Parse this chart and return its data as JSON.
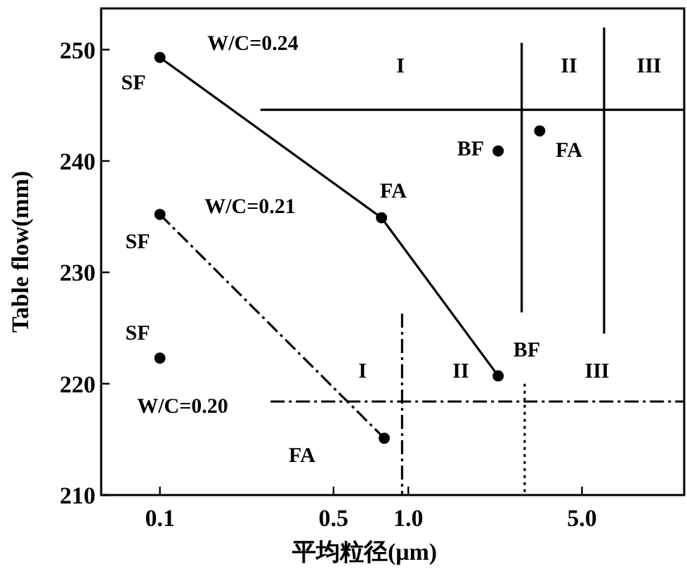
{
  "chart_data": {
    "type": "line",
    "xlabel": "平均粒径(μm)",
    "ylabel": "Table flow(mm)",
    "log": "x",
    "xlim": [
      0.058,
      12.9
    ],
    "ylim": [
      210,
      253.7
    ],
    "xticks": [
      0.1,
      0.5,
      {
        "value": 1,
        "label": "1.0"
      },
      {
        "value": 5,
        "label": "5.0"
      }
    ],
    "yticks": [
      210,
      220,
      230,
      240,
      250
    ],
    "grid": false,
    "series": [
      {
        "type": "line",
        "color": "#000000",
        "marker": "circle",
        "line_style": "solid",
        "x": [
          0.1,
          0.78,
          2.3
        ],
        "values": [
          249.3,
          234.9,
          220.7
        ]
      },
      {
        "type": "line",
        "color": "#000000",
        "marker": "circle",
        "line_style": "dashed",
        "x": [
          0.1,
          0.8
        ],
        "values": [
          235.2,
          215.1
        ]
      },
      {
        "type": "scatter",
        "color": "#000000",
        "marker": "circle",
        "x": [
          0.1,
          2.3,
          3.38
        ],
        "values": [
          222.3,
          240.9,
          242.7
        ]
      },
      {
        "type": "line",
        "color": "#000000",
        "marker": "none",
        "line_style": "solid",
        "x": [
          0.254,
          12.9
        ],
        "values": [
          244.6,
          244.6
        ]
      },
      {
        "type": "line",
        "color": "#000000",
        "marker": "none",
        "line_style": "dashed",
        "x": [
          0.279,
          12.9
        ],
        "values": [
          218.4,
          218.4
        ]
      },
      {
        "type": "line",
        "color": "#000000",
        "marker": "none",
        "line_style": "solid",
        "x": [
          2.86,
          2.86
        ],
        "values": [
          250.6,
          226.4
        ]
      },
      {
        "type": "line",
        "color": "#000000",
        "marker": "none",
        "line_style": "solid",
        "x": [
          6.14,
          6.14
        ],
        "values": [
          252,
          224.5
        ]
      },
      {
        "type": "line",
        "color": "#000000",
        "marker": "none",
        "line_style": "dashed",
        "x": [
          0.944,
          0.944
        ],
        "values": [
          226.3,
          210
        ]
      },
      {
        "type": "line",
        "color": "#000000",
        "marker": "none",
        "line_style": "dotted",
        "x": [
          2.94,
          2.94
        ],
        "values": [
          220,
          210
        ]
      }
    ],
    "annotations": [
      "W/C=0.24",
      "SF",
      "W/C=0.21",
      "SF",
      "SF",
      "W/C=0.20",
      "FA",
      "FA",
      "BF",
      "FA",
      "BF",
      "I",
      "II",
      "III",
      "I",
      "II",
      "III"
    ]
  }
}
